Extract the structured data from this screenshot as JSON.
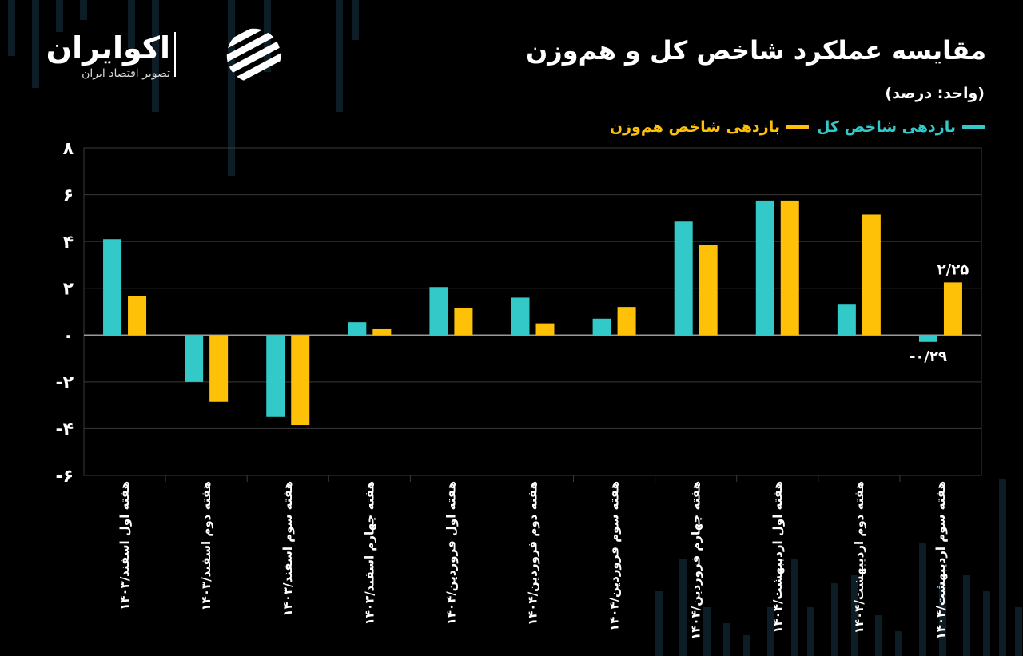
{
  "header": {
    "logo_name": "اکوایران",
    "logo_tagline": "تصویر اقتصاد ایران",
    "title": "مقایسه عملکرد شاخص کل و هم‌وزن",
    "unit": "(واحد: درصد)"
  },
  "colors": {
    "background": "#000000",
    "series_total": "#33c9c9",
    "series_equal": "#ffc107",
    "grid": "#3a3a3a"
  },
  "icons": {
    "logo_mark": "stacked-stripes-circle-logo-icon"
  },
  "chart_data": {
    "type": "bar",
    "title": "مقایسه عملکرد شاخص کل و هم‌وزن",
    "ylabel": "(واحد: درصد)",
    "xlabel": "",
    "ylim": [
      -6,
      8
    ],
    "yticks": [
      8,
      6,
      4,
      2,
      0,
      -2,
      -4,
      -6
    ],
    "ytick_labels": [
      "۸",
      "۶",
      "۴",
      "۲",
      "۰",
      "-۲",
      "-۴",
      "-۶"
    ],
    "grid": true,
    "legend_position": "top-right",
    "categories": [
      "هفته اول اسفند/۱۴۰۳",
      "هفته دوم اسفند/۱۴۰۳",
      "هفته سوم اسفند/۱۴۰۳",
      "هفته چهارم اسفند/۱۴۰۳",
      "هفته اول فروردین/۱۴۰۴",
      "هفته دوم فروردین/۱۴۰۴",
      "هفته سوم فروردین/۱۴۰۴",
      "هفته چهارم فروردین/۱۴۰۴",
      "هفته اول اردیبهشت/۱۴۰۴",
      "هفته دوم اردیبهشت/۱۴۰۴",
      "هفته سوم اردیبهشت/۱۴۰۴"
    ],
    "series": [
      {
        "name": "بازدهی شاخص کل",
        "values": [
          4.1,
          -2.0,
          -3.5,
          0.55,
          2.05,
          1.6,
          0.7,
          4.85,
          5.75,
          1.3,
          -0.29
        ]
      },
      {
        "name": "بازدهی شاخص هم‌وزن",
        "values": [
          1.65,
          -2.85,
          -3.85,
          0.25,
          1.15,
          0.5,
          1.2,
          3.85,
          5.75,
          5.15,
          2.25
        ]
      }
    ],
    "data_labels": [
      {
        "series": 1,
        "index": 10,
        "text": "۲/۲۵"
      },
      {
        "series": 0,
        "index": 10,
        "text": "-۰/۲۹"
      }
    ]
  }
}
